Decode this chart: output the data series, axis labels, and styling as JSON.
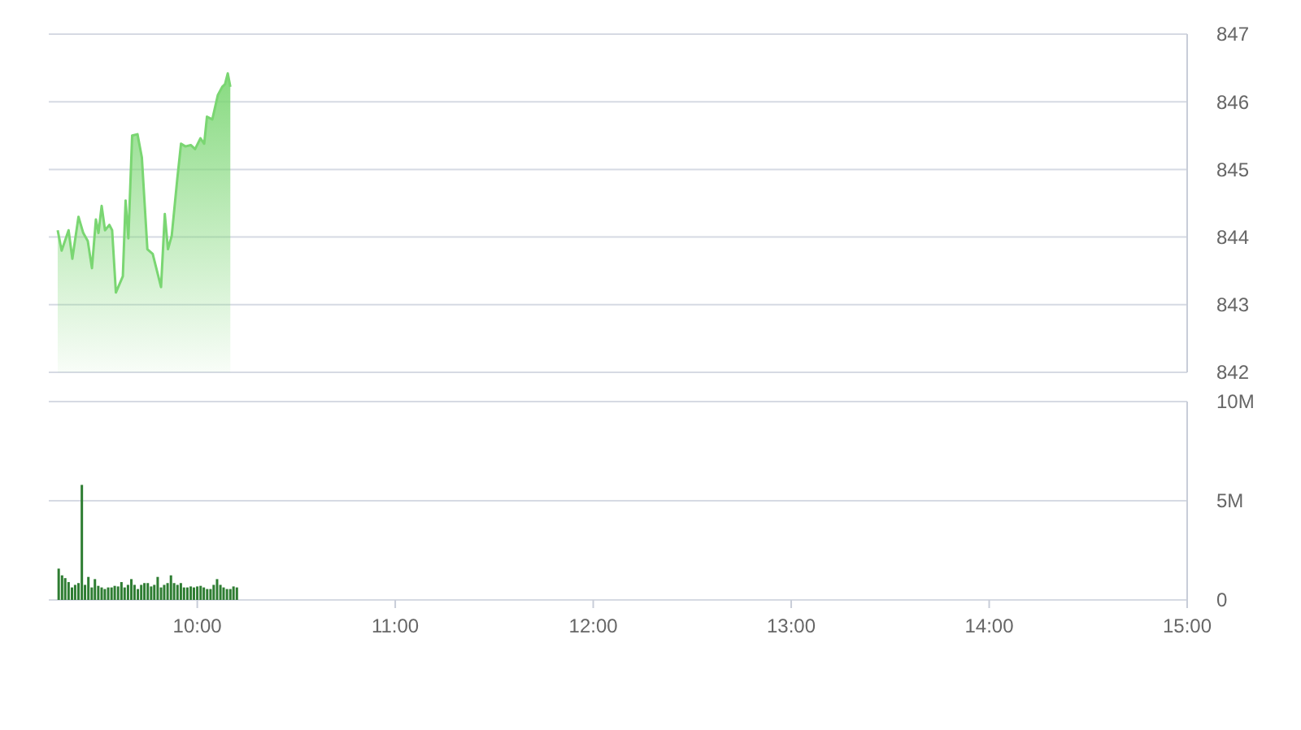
{
  "chart_data": [
    {
      "type": "area",
      "color": "#7ad672",
      "xlim": [
        9.25,
        15
      ],
      "ylim": [
        842,
        847
      ],
      "yticks": [
        842,
        843,
        844,
        845,
        846,
        847
      ],
      "grid": "y",
      "tick_labels": "y",
      "x": [
        9.295,
        9.315,
        9.35,
        9.369,
        9.4,
        9.424,
        9.447,
        9.468,
        9.488,
        9.501,
        9.517,
        9.534,
        9.556,
        9.57,
        9.589,
        9.624,
        9.638,
        9.652,
        9.671,
        9.698,
        9.72,
        9.748,
        9.775,
        9.817,
        9.836,
        9.852,
        9.871,
        9.899,
        9.918,
        9.94,
        9.967,
        9.989,
        10.016,
        10.035,
        10.049,
        10.076,
        10.104,
        10.126,
        10.14,
        10.154,
        10.167
      ],
      "values": [
        844.1,
        843.8,
        844.1,
        843.68,
        844.3,
        844.06,
        843.94,
        843.54,
        844.26,
        844.06,
        844.46,
        844.1,
        844.18,
        844.1,
        843.18,
        843.42,
        844.54,
        843.98,
        845.5,
        845.52,
        845.18,
        843.82,
        843.75,
        843.26,
        844.34,
        843.82,
        844.02,
        844.86,
        845.38,
        845.34,
        845.36,
        845.3,
        845.46,
        845.38,
        845.78,
        845.74,
        846.1,
        846.22,
        846.26,
        846.42,
        846.22
      ]
    },
    {
      "type": "bar",
      "color": "#2e7d32",
      "xlim": [
        9.25,
        15
      ],
      "ylim": [
        0,
        10
      ],
      "yticks": [
        0,
        {
          "value": 5,
          "label": "5M"
        },
        {
          "value": 10,
          "label": "10M"
        }
      ],
      "grid": "y",
      "xticks": [
        {
          "value": 10,
          "label": "10:00"
        },
        {
          "value": 11,
          "label": "11:00"
        },
        {
          "value": 12,
          "label": "12:00"
        },
        {
          "value": 13,
          "label": "13:00"
        },
        {
          "value": 14,
          "label": "14:00"
        },
        {
          "value": 15,
          "label": "15:00"
        }
      ],
      "x": [
        9.3,
        9.317,
        9.333,
        9.35,
        9.367,
        9.383,
        9.4,
        9.417,
        9.433,
        9.45,
        9.467,
        9.483,
        9.5,
        9.517,
        9.533,
        9.55,
        9.567,
        9.583,
        9.6,
        9.617,
        9.633,
        9.65,
        9.667,
        9.683,
        9.7,
        9.717,
        9.733,
        9.75,
        9.767,
        9.783,
        9.8,
        9.817,
        9.833,
        9.85,
        9.867,
        9.883,
        9.9,
        9.917,
        9.933,
        9.95,
        9.967,
        9.983,
        10,
        10.017,
        10.033,
        10.05,
        10.067,
        10.083,
        10.1,
        10.117,
        10.133,
        10.15,
        10.167,
        10.183,
        10.2
      ],
      "values": [
        1.58,
        1.24,
        1.1,
        0.9,
        0.63,
        0.76,
        0.85,
        5.8,
        0.76,
        1.16,
        0.63,
        1.05,
        0.71,
        0.63,
        0.55,
        0.63,
        0.63,
        0.71,
        0.68,
        0.9,
        0.63,
        0.76,
        1.05,
        0.76,
        0.55,
        0.76,
        0.85,
        0.85,
        0.68,
        0.76,
        1.16,
        0.63,
        0.76,
        0.85,
        1.24,
        0.85,
        0.76,
        0.85,
        0.63,
        0.63,
        0.68,
        0.63,
        0.68,
        0.71,
        0.63,
        0.55,
        0.55,
        0.76,
        1.05,
        0.76,
        0.63,
        0.55,
        0.55,
        0.68,
        0.63
      ]
    }
  ]
}
